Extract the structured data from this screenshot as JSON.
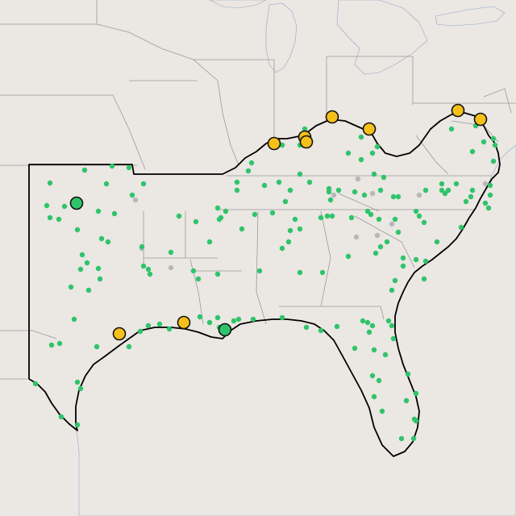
{
  "map": {
    "colors": {
      "land": "#ebe7e3",
      "water": "#c7daea",
      "state_border": "#9a9a9a",
      "region_outline": "#000000",
      "small_marker": "#2fc46a",
      "large_green_marker": "#2fc46a",
      "large_yellow_marker": "#f5c01a",
      "inactive_marker": "#b8b8b8",
      "marker_stroke": "#111111"
    },
    "marker_types": [
      "small-green",
      "large-green",
      "large-yellow",
      "small-gray"
    ]
  }
}
